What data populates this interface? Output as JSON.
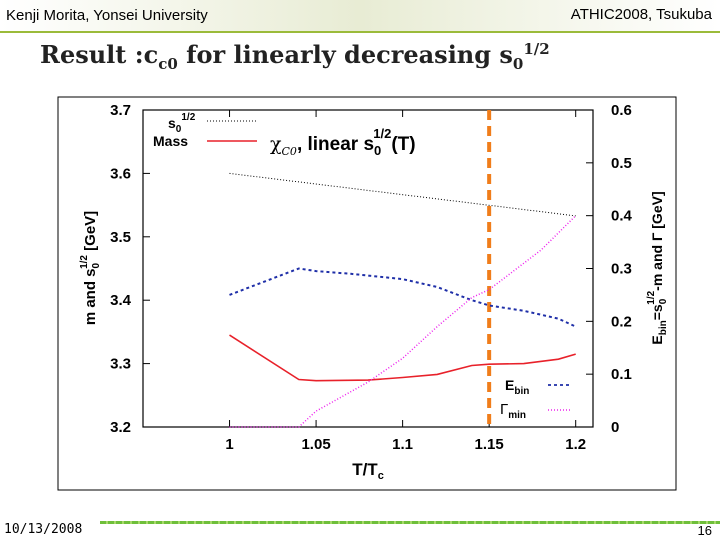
{
  "header": {
    "author": "Kenji Morita, Yonsei University",
    "conference": "ATHIC2008, Tsukuba"
  },
  "slide": {
    "title": "Result :c",
    "title_sub": "c0",
    "title_rest": " for linearly decreasing ",
    "title_s": "s",
    "title_s_sub": "0",
    "title_s_sup": "1/2"
  },
  "footer": {
    "date": "10/13/2008",
    "page": "16"
  },
  "colors": {
    "accent_green": "#9bbb3a",
    "mass_line": "#e8212a",
    "s0_line": "#000000",
    "ebin_line": "#1f2fa8",
    "gamma_line": "#ee22ee",
    "dashed_marker": "#f07d1a"
  },
  "chart_data": {
    "type": "line",
    "title": "χc0, linear s0^1/2(T)",
    "x": [
      1.0,
      1.05,
      1.1,
      1.15,
      1.2
    ],
    "xlabel": "T/Tc",
    "ylabel_left": "m and s0^1/2 [GeV]",
    "ylabel_right": "Ebin=s0^1/2-m and Γ [GeV]",
    "xlim": [
      0.95,
      1.21
    ],
    "ylim_left": [
      3.2,
      3.7
    ],
    "ylim_right": [
      0,
      0.6
    ],
    "xticks": [
      "1",
      "1.05",
      "1.1",
      "1.15",
      "1.2"
    ],
    "yticks_left": [
      "3.2",
      "3.3",
      "3.4",
      "3.5",
      "3.6",
      "3.7"
    ],
    "yticks_right": [
      "0",
      "0.1",
      "0.2",
      "0.3",
      "0.4",
      "0.5",
      "0.6"
    ],
    "vertical_marker_x": 1.15,
    "series": [
      {
        "name": "s0^1/2",
        "axis": "left",
        "style": "dotted",
        "x": [
          1.0,
          1.2
        ],
        "values": [
          3.6,
          3.533
        ]
      },
      {
        "name": "Mass",
        "axis": "left",
        "style": "solid",
        "x": [
          1.0,
          1.04,
          1.05,
          1.08,
          1.1,
          1.12,
          1.14,
          1.15,
          1.17,
          1.19,
          1.2
        ],
        "values": [
          3.345,
          3.275,
          3.273,
          3.274,
          3.278,
          3.283,
          3.297,
          3.299,
          3.3,
          3.307,
          3.315
        ]
      },
      {
        "name": "Ebin",
        "axis": "right",
        "style": "dashed",
        "x": [
          1.0,
          1.04,
          1.05,
          1.07,
          1.1,
          1.12,
          1.14,
          1.15,
          1.17,
          1.19,
          1.2
        ],
        "values": [
          0.25,
          0.3,
          0.295,
          0.29,
          0.28,
          0.265,
          0.24,
          0.23,
          0.22,
          0.205,
          0.19
        ]
      },
      {
        "name": "Γmin",
        "axis": "right",
        "style": "dotted",
        "x": [
          1.0,
          1.04,
          1.05,
          1.08,
          1.1,
          1.12,
          1.14,
          1.15,
          1.18,
          1.2
        ],
        "values": [
          0.0,
          0.0,
          0.03,
          0.085,
          0.13,
          0.19,
          0.245,
          0.26,
          0.335,
          0.4
        ]
      }
    ],
    "legend": {
      "top": [
        {
          "label": "s0^1/2",
          "text": "s",
          "sub": "0",
          "sup": "1/2"
        },
        {
          "label": "Mass",
          "text": "Mass"
        }
      ],
      "bottom": [
        {
          "label": "Ebin",
          "text": "E",
          "sub": "bin"
        },
        {
          "label": "Γmin",
          "text": "Γ",
          "sub": "min"
        }
      ],
      "top_position": "top-left",
      "bottom_position": "bottom-right"
    },
    "annotation": {
      "chi": "χ",
      "chi_sub": "C0",
      "rest": ", linear s",
      "s_sub": "0",
      "s_sup": "1/2",
      "tail": "(T)"
    }
  }
}
